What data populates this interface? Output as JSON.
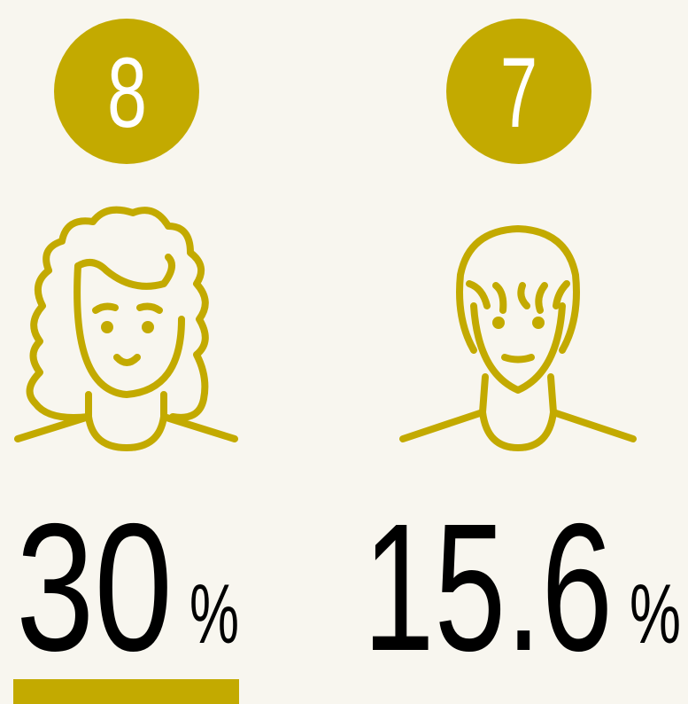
{
  "items": [
    {
      "badge": "8",
      "value": "30",
      "unit": "%"
    },
    {
      "badge": "7",
      "value": "15.6",
      "unit": "%"
    }
  ]
}
